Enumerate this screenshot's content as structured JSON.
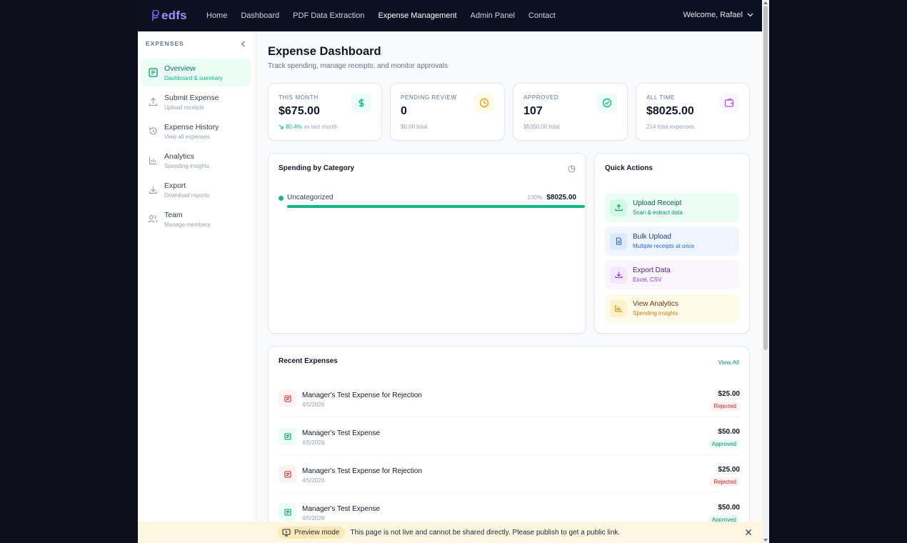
{
  "brand": {
    "name": "edfs",
    "accent": "#a78bfa"
  },
  "nav": {
    "links": [
      "Home",
      "Dashboard",
      "PDF Data Extraction",
      "Expense Management",
      "Admin Panel",
      "Contact"
    ],
    "active": "Expense Management",
    "welcome": "Welcome, Rafael"
  },
  "sidebar": {
    "heading": "EXPENSES",
    "items": [
      {
        "label": "Overview",
        "sub": "Dashboard & summary",
        "icon": "receipt-icon",
        "active": true
      },
      {
        "label": "Submit Expense",
        "sub": "Upload receipts",
        "icon": "upload-icon"
      },
      {
        "label": "Expense History",
        "sub": "View all expenses",
        "icon": "history-icon"
      },
      {
        "label": "Analytics",
        "sub": "Spending insights",
        "icon": "bar-chart-icon"
      },
      {
        "label": "Export",
        "sub": "Download reports",
        "icon": "download-icon"
      },
      {
        "label": "Team",
        "sub": "Manage members",
        "icon": "users-icon"
      }
    ]
  },
  "page": {
    "title": "Expense Dashboard",
    "subtitle": "Track spending, manage receipts, and monitor approvals"
  },
  "stats": [
    {
      "label": "THIS MONTH",
      "value": "$675.00",
      "trend": "80.4%",
      "trend_text": "vs last month",
      "icon": "dollar-icon",
      "color": "#10b981"
    },
    {
      "label": "PENDING REVIEW",
      "value": "0",
      "sub": "$0.00 total",
      "icon": "clock-icon",
      "color": "#f59e0b"
    },
    {
      "label": "APPROVED",
      "value": "107",
      "sub": "$5350.00 total",
      "icon": "check-circle-icon",
      "color": "#10b981"
    },
    {
      "label": "ALL TIME",
      "value": "$8025.00",
      "sub": "214 total expenses",
      "icon": "wallet-icon",
      "color": "#a855f7"
    }
  ],
  "category": {
    "title": "Spending by Category",
    "items": [
      {
        "name": "Uncategorized",
        "percent_label": "100%",
        "amount": "$8025.00",
        "fraction": 1.0,
        "color": "#10b981"
      }
    ]
  },
  "quick_actions": {
    "title": "Quick Actions",
    "items": [
      {
        "label": "Upload Receipt",
        "sub": "Scan & extract data",
        "icon": "upload-icon",
        "bg": "#ecfdf5",
        "fg": "#065f46",
        "sub_fg": "#059669",
        "ic_bg": "#d1fae5",
        "ic_fg": "#059669"
      },
      {
        "label": "Bulk Upload",
        "sub": "Multiple receipts at once",
        "icon": "file-icon",
        "bg": "#eff6ff",
        "fg": "#1e3a8a",
        "sub_fg": "#2563eb",
        "ic_bg": "#dbeafe",
        "ic_fg": "#2563eb"
      },
      {
        "label": "Export Data",
        "sub": "Excel, CSV",
        "icon": "download-icon",
        "bg": "#faf5ff",
        "fg": "#581c87",
        "sub_fg": "#9333ea",
        "ic_bg": "#f3e8ff",
        "ic_fg": "#9333ea"
      },
      {
        "label": "View Analytics",
        "sub": "Spending insights",
        "icon": "bar-chart-icon",
        "bg": "#fffbeb",
        "fg": "#78350f",
        "sub_fg": "#d97706",
        "ic_bg": "#fef3c7",
        "ic_fg": "#d97706"
      }
    ]
  },
  "recent": {
    "title": "Recent Expenses",
    "view_all": "View All",
    "rows": [
      {
        "title": "Manager's Test Expense for Rejection",
        "date": "4/5/2026",
        "amount": "$25.00",
        "status": "Rejected"
      },
      {
        "title": "Manager's Test Expense",
        "date": "4/5/2026",
        "amount": "$50.00",
        "status": "Approved"
      },
      {
        "title": "Manager's Test Expense for Rejection",
        "date": "4/5/2026",
        "amount": "$25.00",
        "status": "Rejected"
      },
      {
        "title": "Manager's Test Expense",
        "date": "4/5/2026",
        "amount": "$50.00",
        "status": "Approved"
      }
    ]
  },
  "preview": {
    "mode": "Preview mode",
    "message": "This page is not live and cannot be shared directly. Please publish to get a public link."
  }
}
